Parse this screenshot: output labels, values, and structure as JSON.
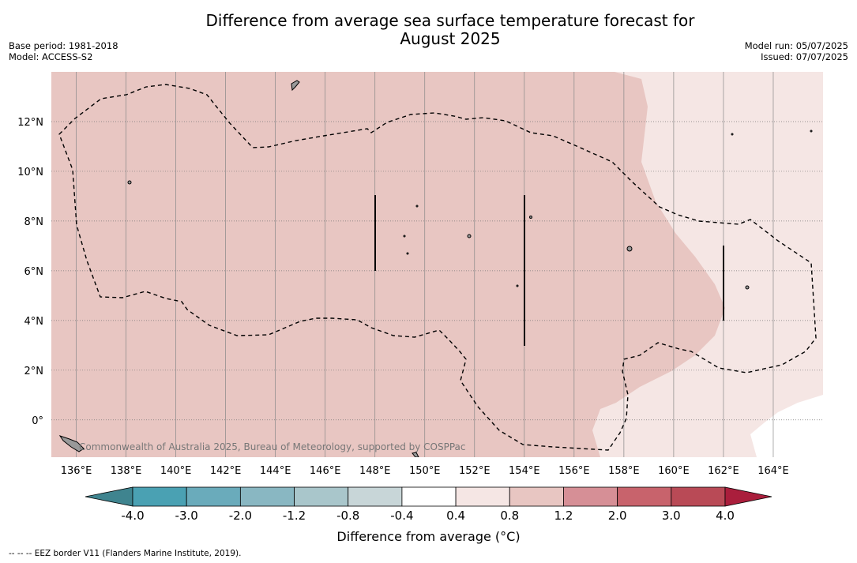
{
  "title_line1": "Difference from average sea surface temperature forecast for",
  "title_line2": "August 2025",
  "base_period": "Base period: 1981-2018",
  "model": "Model: ACCESS-S2",
  "model_run": "Model run: 05/07/2025",
  "issued": "Issued: 07/07/2025",
  "copyright": "Commonwealth of Australia 2025, Bureau of Meteorology, supported by COSPPac",
  "footer": "--  --  -- EEZ border V11 (Flanders Marine Institute, 2019).",
  "map": {
    "lon_range": [
      135,
      166
    ],
    "lat_range": [
      -1.5,
      14
    ],
    "lon_ticks": [
      "136°E",
      "138°E",
      "140°E",
      "142°E",
      "144°E",
      "146°E",
      "148°E",
      "150°E",
      "152°E",
      "154°E",
      "156°E",
      "158°E",
      "160°E",
      "162°E",
      "164°E"
    ],
    "lat_ticks": [
      "12°N",
      "10°N",
      "8°N",
      "6°N",
      "4°N",
      "2°N",
      "0°"
    ],
    "fill_colors": {
      "warm_0_4_0_8": "#f5e6e4",
      "warm_0_8_1_2": "#e8c6c2",
      "land": "#999999"
    }
  },
  "colorbar": {
    "label": "Difference from average (°C)",
    "ticks": [
      "-4.0",
      "-3.0",
      "-2.0",
      "-1.2",
      "-0.8",
      "-0.4",
      "0.4",
      "0.8",
      "1.2",
      "2.0",
      "3.0",
      "4.0"
    ],
    "colors": [
      "#3f848f",
      "#4aa1b3",
      "#6aabbb",
      "#89b7c2",
      "#a9c6cb",
      "#c8d6d8",
      "#ffffff",
      "#f5e6e4",
      "#e8c6c2",
      "#d68f96",
      "#c8636c",
      "#b94a56",
      "#aa1e3c"
    ]
  }
}
